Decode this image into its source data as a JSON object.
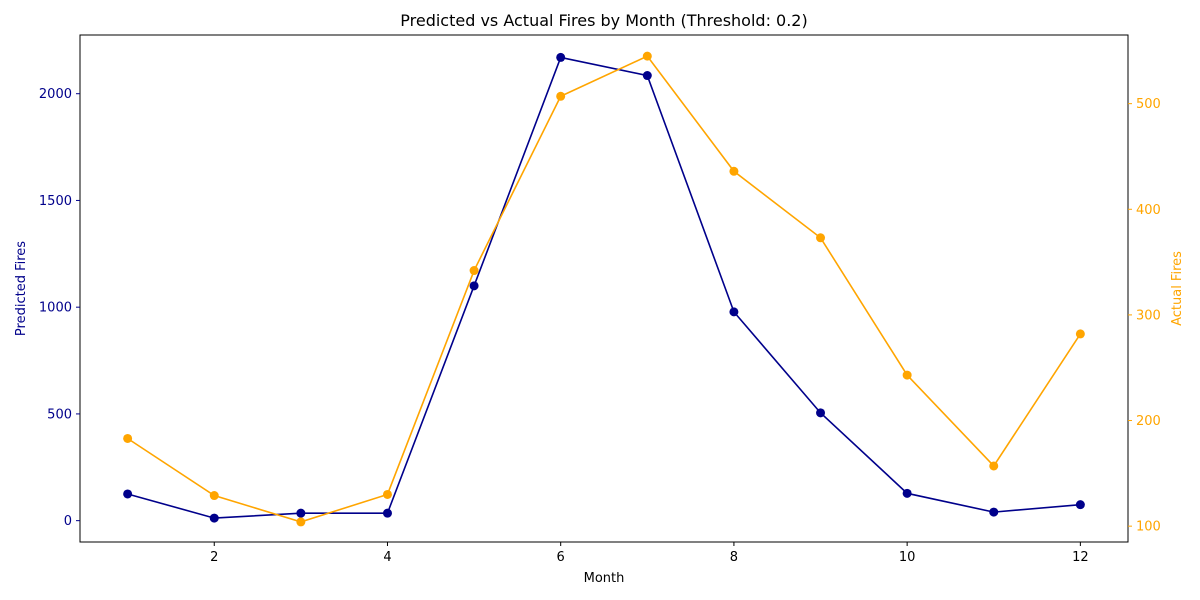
{
  "chart_data": {
    "type": "line",
    "title": "Predicted vs Actual Fires by Month (Threshold: 0.2)",
    "xlabel": "Month",
    "ylabel_left": "Predicted Fires",
    "ylabel_right": "Actual Fires",
    "x": [
      1,
      2,
      3,
      4,
      5,
      6,
      7,
      8,
      9,
      10,
      11,
      12
    ],
    "x_ticks": [
      2,
      4,
      6,
      8,
      10,
      12
    ],
    "xlim": [
      0.45,
      12.55
    ],
    "ylim_left": [
      -100,
      2275
    ],
    "ylim_right": [
      85,
      565
    ],
    "y_ticks_left": [
      0,
      500,
      1000,
      1500,
      2000
    ],
    "y_ticks_right": [
      100,
      200,
      300,
      400,
      500
    ],
    "grid": false,
    "series": [
      {
        "axis": "left",
        "color": "#00008b",
        "values": [
          125,
          12,
          35,
          35,
          1100,
          2170,
          2085,
          978,
          505,
          128,
          40,
          75
        ]
      },
      {
        "axis": "right",
        "color": "#ffa500",
        "values": [
          183,
          129,
          104,
          130,
          342,
          507,
          545,
          436,
          373,
          243,
          157,
          282
        ]
      }
    ]
  }
}
